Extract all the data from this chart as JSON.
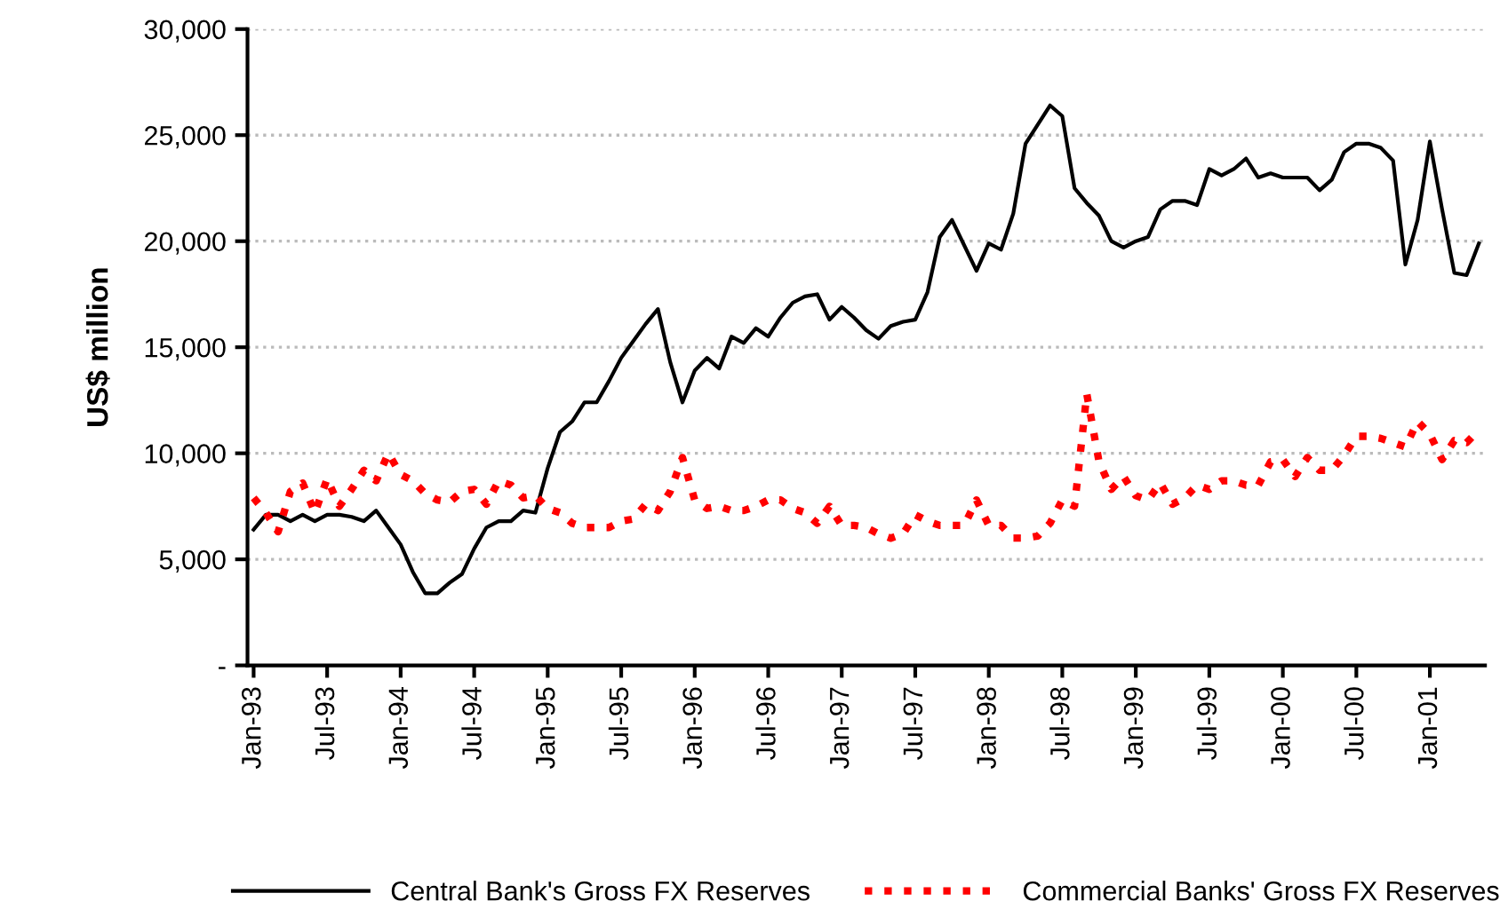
{
  "chart_data": {
    "type": "line",
    "ylabel": "US$ million",
    "categories": [
      "Jan-93",
      null,
      null,
      null,
      null,
      null,
      "Jul-93",
      null,
      null,
      null,
      null,
      null,
      "Jan-94",
      null,
      null,
      null,
      null,
      null,
      "Jul-94",
      null,
      null,
      null,
      null,
      null,
      "Jan-95",
      null,
      null,
      null,
      null,
      null,
      "Jul-95",
      null,
      null,
      null,
      null,
      null,
      "Jan-96",
      null,
      null,
      null,
      null,
      null,
      "Jul-96",
      null,
      null,
      null,
      null,
      null,
      "Jan-97",
      null,
      null,
      null,
      null,
      null,
      "Jul-97",
      null,
      null,
      null,
      null,
      null,
      "Jan-98",
      null,
      null,
      null,
      null,
      null,
      "Jul-98",
      null,
      null,
      null,
      null,
      null,
      "Jan-99",
      null,
      null,
      null,
      null,
      null,
      "Jul-99",
      null,
      null,
      null,
      null,
      null,
      "Jan-00",
      null,
      null,
      null,
      null,
      null,
      "Jul-00",
      null,
      null,
      null,
      null,
      null,
      "Jan-01",
      null,
      null,
      null,
      null
    ],
    "series": [
      {
        "name": "Central Bank's Gross FX Reserves",
        "color": "#000000",
        "line_style": "solid",
        "values": [
          6400,
          7100,
          7100,
          6800,
          7100,
          6800,
          7100,
          7100,
          7000,
          6800,
          7300,
          6500,
          5700,
          4400,
          3400,
          3400,
          3900,
          4300,
          5500,
          6500,
          6800,
          6800,
          7300,
          7200,
          9300,
          11000,
          11500,
          12400,
          12400,
          13400,
          14500,
          15300,
          16100,
          16800,
          14300,
          12400,
          13900,
          14500,
          14000,
          15500,
          15200,
          15900,
          15500,
          16400,
          17100,
          17400,
          17500,
          16300,
          16900,
          16400,
          15800,
          15400,
          16000,
          16200,
          16300,
          17600,
          20200,
          21000,
          19800,
          18600,
          19900,
          19600,
          21300,
          24600,
          25500,
          26400,
          25900,
          22500,
          21800,
          21200,
          20000,
          19700,
          20000,
          20200,
          21500,
          21900,
          21900,
          21700,
          23400,
          23100,
          23400,
          23900,
          23000,
          23200,
          23000,
          23000,
          23000,
          22400,
          22900,
          24200,
          24600,
          24600,
          24400,
          23800,
          18900,
          21000,
          24700,
          21500,
          18500,
          18400,
          19900
        ]
      },
      {
        "name": "Commercial Banks' Gross FX Reserves",
        "color": "#ff0000",
        "line_style": "dotted",
        "values": [
          7900,
          7200,
          6300,
          8200,
          8600,
          7200,
          8800,
          7500,
          8300,
          9200,
          8700,
          10000,
          9000,
          8700,
          8100,
          7800,
          7700,
          8200,
          8300,
          7600,
          8700,
          8500,
          7900,
          8000,
          7400,
          7200,
          6700,
          6500,
          6500,
          6500,
          6800,
          6900,
          7600,
          7300,
          8200,
          9800,
          7800,
          7400,
          7500,
          7300,
          7300,
          7500,
          7800,
          7800,
          7400,
          7200,
          6700,
          7500,
          6600,
          6600,
          6500,
          6200,
          6000,
          6200,
          7100,
          6800,
          6600,
          6600,
          6600,
          7800,
          6600,
          6600,
          6000,
          6000,
          6100,
          6700,
          7800,
          7500,
          12800,
          9600,
          8300,
          8900,
          8000,
          7800,
          8600,
          7600,
          7900,
          8500,
          8300,
          8700,
          8700,
          8500,
          8500,
          9600,
          9700,
          8900,
          9800,
          9200,
          9200,
          9900,
          10800,
          10800,
          10700,
          10500,
          10300,
          11500,
          10900,
          9700,
          10600,
          10500,
          11100
        ]
      }
    ],
    "ylim": [
      0,
      30000
    ],
    "yticks": [
      {
        "value": 0,
        "label": "-"
      },
      {
        "value": 5000,
        "label": "5,000"
      },
      {
        "value": 10000,
        "label": "10,000"
      },
      {
        "value": 15000,
        "label": "15,000"
      },
      {
        "value": 20000,
        "label": "20,000"
      },
      {
        "value": 25000,
        "label": "25,000"
      },
      {
        "value": 30000,
        "label": "30,000"
      }
    ],
    "grid": "y",
    "legend": "bottom",
    "marker": "none"
  }
}
